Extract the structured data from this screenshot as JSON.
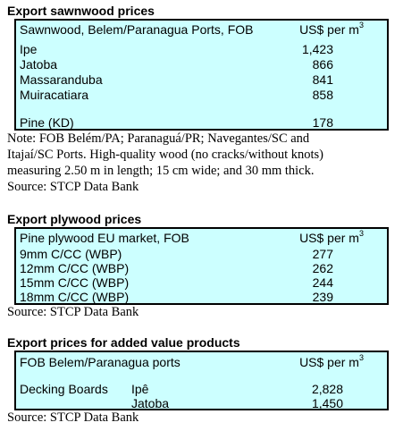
{
  "sawnwood": {
    "title": "Export sawnwood prices",
    "header_left": "Sawnwood, Belem/Paranagua Ports, FOB",
    "header_unit": "US$ per m",
    "header_unit_sup": "3",
    "rows": [
      {
        "name": "Ipe",
        "value": "1,423"
      },
      {
        "name": "Jatoba",
        "value": "866"
      },
      {
        "name": "Massaranduba",
        "value": "841"
      },
      {
        "name": "Muiracatiara",
        "value": "858"
      },
      {
        "name": "Pine (KD)",
        "value": "178"
      }
    ],
    "note_lines": [
      "Note: FOB Belém/PA; Paranaguá/PR; Navegantes/SC and",
      "Itajaí/SC Ports. High-quality wood (no cracks/without knots)",
      "measuring 2.50 m in length; 15 cm wide; and 30 mm thick."
    ],
    "source": "Source: STCP Data Bank"
  },
  "plywood": {
    "title": "Export plywood prices",
    "header_left": "Pine plywood EU market, FOB",
    "header_unit": "US$ per m",
    "header_unit_sup": "3",
    "rows": [
      {
        "name": "9mm C/CC (WBP)",
        "value": "277"
      },
      {
        "name": "12mm C/CC (WBP)",
        "value": "262"
      },
      {
        "name": "15mm C/CC (WBP)",
        "value": "244"
      },
      {
        "name": "18mm C/CC (WBP)",
        "value": "239"
      }
    ],
    "source": "Source: STCP Data Bank"
  },
  "added_value": {
    "title": "Export prices for added value products",
    "header_left": "FOB Belem/Paranagua ports",
    "header_unit": "US$ per m",
    "header_unit_sup": "3",
    "product": "Decking Boards",
    "rows": [
      {
        "name": "Ipê",
        "value": "2,828"
      },
      {
        "name": "Jatoba",
        "value": "1,450"
      }
    ],
    "source": "Source: STCP Data Bank"
  }
}
